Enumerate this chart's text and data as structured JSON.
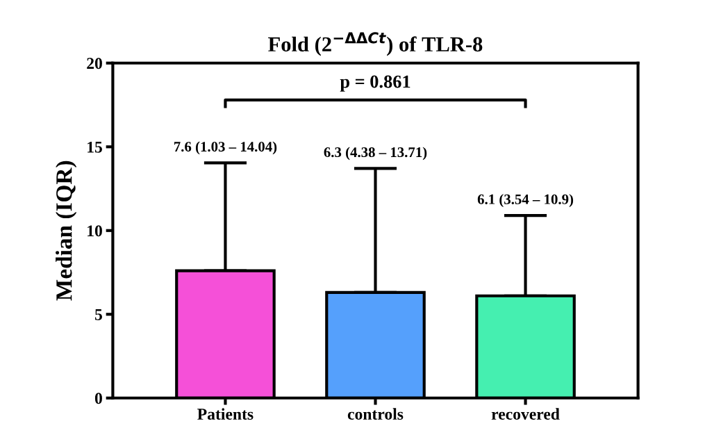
{
  "chart_data": {
    "type": "bar",
    "title": "Fold (2$^{−ΔΔCt}$) of TLR-8",
    "ylabel": "Median (IQR)",
    "categories": [
      "Patients",
      "controls",
      "recovered"
    ],
    "values": [
      7.6,
      6.3,
      6.1
    ],
    "colors": [
      "#f550d8",
      "#55a0fc",
      "#45efb0"
    ],
    "errors": [
      [
        7.6,
        14.04
      ],
      [
        6.3,
        13.71
      ],
      [
        6.1,
        10.9
      ]
    ],
    "annotations": [
      "p = 0.861",
      {
        "text": "7.6 (1.03 – 14.04)",
        "x": "Patients",
        "y": 14.04
      },
      {
        "text": "6.3 (4.38 – 13.71)",
        "x": "controls",
        "y": 13.71
      },
      {
        "text": "6.1 (3.54 – 10.9)",
        "x": "recovered",
        "y": 10.9
      }
    ],
    "ylim": [
      0,
      20
    ],
    "yticks": [
      0,
      5,
      10,
      15,
      20
    ],
    "grid": false,
    "legend": false
  }
}
